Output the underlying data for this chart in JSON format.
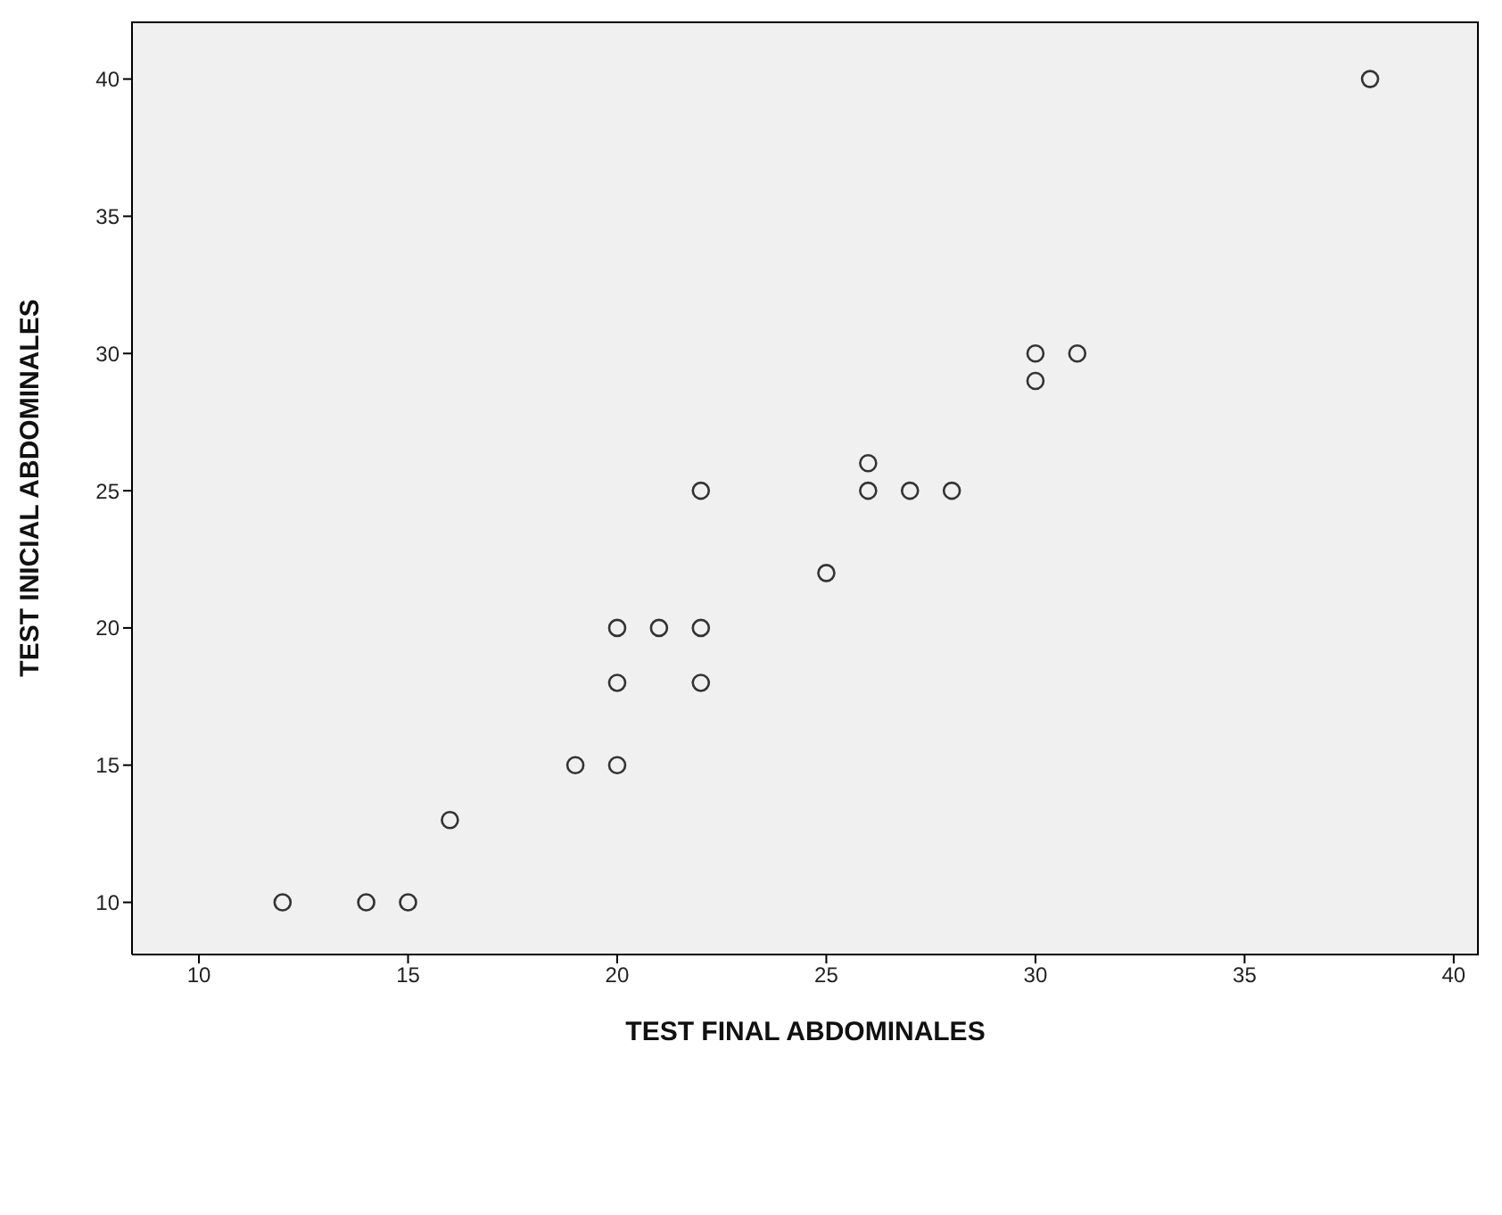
{
  "chart_data": {
    "type": "scatter",
    "xlabel": "TEST FINAL ABDOMINALES",
    "ylabel": "TEST INICIAL ABDOMINALES",
    "x": [
      12,
      14,
      15,
      16,
      19,
      20,
      20,
      20,
      21,
      22,
      22,
      22,
      25,
      26,
      26,
      27,
      28,
      30,
      30,
      31,
      38
    ],
    "values": [
      10,
      10,
      10,
      13,
      15,
      15,
      18,
      20,
      20,
      20,
      18,
      25,
      22,
      26,
      25,
      25,
      25,
      30,
      29,
      30,
      40
    ],
    "color": "#333333",
    "marker": "circle",
    "grid": false,
    "xlim": [
      8.4,
      40.6
    ],
    "xticks": [
      10,
      15,
      20,
      25,
      30,
      35,
      40
    ],
    "ylim": [
      8.1,
      42.1
    ],
    "yticks": [
      10,
      15,
      20,
      25,
      30,
      35,
      40
    ]
  }
}
